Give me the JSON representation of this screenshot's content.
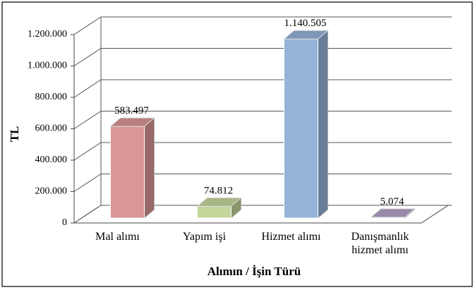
{
  "chart_data": {
    "type": "bar3d",
    "y_label": "TL",
    "x_label": "Alımın / İşin Türü",
    "categories": [
      "Mal alımı",
      "Yapım işi",
      "Hizmet alımı",
      "Danışmanlık hizmet alımı"
    ],
    "values": [
      583497,
      74812,
      1140505,
      5074
    ],
    "value_labels": [
      "583.497",
      "74.812",
      "1.140.505",
      "5.074"
    ],
    "colors": [
      "#d99694",
      "#c3d69b",
      "#95b3d7",
      "#b3a2c7"
    ],
    "ylim": [
      0,
      1200000
    ],
    "yticks": [
      0,
      {
        "value": 200000,
        "label": "200.000"
      },
      {
        "value": 400000,
        "label": "400.000"
      },
      {
        "value": 600000,
        "label": "600.000"
      },
      {
        "value": 800000,
        "label": "800.000"
      },
      {
        "value": 1000000,
        "label": "1.000.000"
      },
      {
        "value": 1200000,
        "label": "1.200.000"
      }
    ],
    "grid": true
  }
}
